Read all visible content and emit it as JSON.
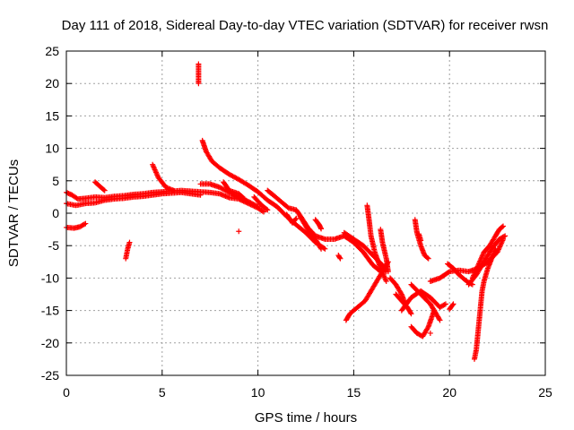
{
  "chart_data": {
    "type": "scatter",
    "title": "Day 111 of 2018, Sidereal Day-to-day VTEC variation (SDTVAR) for receiver rwsn",
    "xlabel": "GPS time / hours",
    "ylabel": "SDTVAR / TECUs",
    "xlim": [
      0,
      25
    ],
    "ylim": [
      -25,
      25
    ],
    "xticks": [
      0,
      5,
      10,
      15,
      20,
      25
    ],
    "yticks": [
      -25,
      -20,
      -15,
      -10,
      -5,
      0,
      5,
      10,
      15,
      20,
      25
    ],
    "grid": true,
    "marker": "+",
    "marker_color": "#ff0000",
    "series": [
      {
        "name": "SDTVAR",
        "segments": [
          [
            [
              0.0,
              3.2
            ],
            [
              0.3,
              2.8
            ],
            [
              0.6,
              2.2
            ],
            [
              1.0,
              2.3
            ],
            [
              1.5,
              2.5
            ],
            [
              2.0,
              2.4
            ],
            [
              2.5,
              2.6
            ],
            [
              3.0,
              2.7
            ],
            [
              3.5,
              2.9
            ],
            [
              4.0,
              3.0
            ],
            [
              4.5,
              3.2
            ],
            [
              5.0,
              3.3
            ],
            [
              5.5,
              3.4
            ],
            [
              6.0,
              3.5
            ],
            [
              6.5,
              3.4
            ],
            [
              7.0,
              3.3
            ],
            [
              7.5,
              3.2
            ],
            [
              8.0,
              3.0
            ],
            [
              8.5,
              2.4
            ],
            [
              9.0,
              2.2
            ],
            [
              9.5,
              1.5
            ],
            [
              10.0,
              0.8
            ],
            [
              10.3,
              0.2
            ]
          ],
          [
            [
              0.0,
              1.5
            ],
            [
              0.5,
              1.2
            ],
            [
              1.0,
              1.5
            ],
            [
              1.5,
              1.6
            ],
            [
              2.0,
              2.0
            ],
            [
              2.5,
              2.2
            ],
            [
              3.0,
              2.3
            ],
            [
              3.5,
              2.5
            ],
            [
              4.0,
              2.6
            ],
            [
              4.5,
              2.8
            ],
            [
              5.0,
              3.0
            ],
            [
              5.5,
              3.1
            ],
            [
              6.0,
              3.2
            ],
            [
              6.5,
              3.0
            ],
            [
              7.0,
              2.8
            ]
          ],
          [
            [
              0.0,
              -2.2
            ],
            [
              0.4,
              -2.3
            ],
            [
              0.7,
              -2.1
            ],
            [
              1.0,
              -1.6
            ]
          ],
          [
            [
              1.5,
              4.8
            ],
            [
              1.8,
              4.0
            ],
            [
              2.0,
              3.5
            ]
          ],
          [
            [
              3.1,
              -7.0
            ],
            [
              3.2,
              -5.5
            ],
            [
              3.3,
              -4.5
            ]
          ],
          [
            [
              4.5,
              7.5
            ],
            [
              4.8,
              5.5
            ],
            [
              5.2,
              4.0
            ],
            [
              5.6,
              3.5
            ]
          ],
          [
            [
              6.9,
              23.0
            ],
            [
              6.9,
              21.5
            ],
            [
              6.9,
              20.0
            ]
          ],
          [
            [
              7.1,
              11.2
            ],
            [
              7.3,
              9.5
            ],
            [
              7.6,
              8.0
            ],
            [
              8.0,
              7.0
            ],
            [
              8.5,
              6.0
            ],
            [
              9.0,
              5.2
            ],
            [
              9.5,
              4.3
            ],
            [
              10.0,
              3.3
            ],
            [
              10.5,
              2.0
            ],
            [
              11.0,
              1.0
            ],
            [
              11.5,
              -0.5
            ],
            [
              12.0,
              -1.8
            ],
            [
              12.5,
              -3.0
            ],
            [
              13.0,
              -4.5
            ],
            [
              13.5,
              -5.5
            ]
          ],
          [
            [
              7.0,
              4.5
            ],
            [
              7.5,
              4.5
            ],
            [
              8.0,
              4.0
            ],
            [
              8.5,
              3.2
            ],
            [
              9.0,
              2.5
            ],
            [
              9.5,
              1.8
            ],
            [
              10.0,
              1.0
            ]
          ],
          [
            [
              10.5,
              3.5
            ],
            [
              10.8,
              2.8
            ],
            [
              11.2,
              1.8
            ],
            [
              11.6,
              0.8
            ],
            [
              12.0,
              0.5
            ],
            [
              12.3,
              -0.8
            ],
            [
              12.6,
              -2.2
            ],
            [
              13.0,
              -3.5
            ],
            [
              13.5,
              -4.0
            ],
            [
              14.0,
              -4.0
            ],
            [
              14.5,
              -3.5
            ],
            [
              15.0,
              -4.5
            ]
          ],
          [
            [
              12.2,
              -0.5
            ],
            [
              12.6,
              -2.5
            ],
            [
              13.0,
              -4.0
            ],
            [
              13.3,
              -5.5
            ]
          ],
          [
            [
              13.0,
              -1.0
            ],
            [
              13.2,
              -1.8
            ],
            [
              13.3,
              -2.4
            ]
          ],
          [
            [
              14.2,
              -6.5
            ],
            [
              14.3,
              -7.0
            ]
          ],
          [
            [
              14.5,
              -3.0
            ],
            [
              15.0,
              -4.0
            ],
            [
              15.5,
              -5.0
            ],
            [
              16.0,
              -6.5
            ],
            [
              16.5,
              -8.0
            ],
            [
              16.7,
              -9.0
            ]
          ],
          [
            [
              14.6,
              -16.5
            ],
            [
              14.8,
              -15.5
            ],
            [
              15.2,
              -14.5
            ],
            [
              15.6,
              -13.5
            ],
            [
              15.9,
              -12.0
            ],
            [
              16.2,
              -10.5
            ],
            [
              16.5,
              -9.0
            ],
            [
              16.8,
              -7.5
            ]
          ],
          [
            [
              15.7,
              1.2
            ],
            [
              15.8,
              -1.0
            ],
            [
              15.9,
              -3.5
            ],
            [
              16.1,
              -6.0
            ],
            [
              16.4,
              -8.5
            ],
            [
              16.7,
              -10.5
            ]
          ],
          [
            [
              16.4,
              -2.5
            ],
            [
              16.5,
              -4.5
            ],
            [
              16.7,
              -7.0
            ],
            [
              16.8,
              -9.0
            ]
          ],
          [
            [
              15.0,
              -4.5
            ],
            [
              15.5,
              -6.0
            ],
            [
              16.0,
              -8.0
            ],
            [
              16.4,
              -9.0
            ]
          ],
          [
            [
              16.9,
              -10.0
            ],
            [
              17.2,
              -11.0
            ],
            [
              17.5,
              -12.5
            ],
            [
              17.7,
              -14.0
            ]
          ],
          [
            [
              17.2,
              -12.5
            ],
            [
              17.5,
              -13.5
            ],
            [
              17.8,
              -14.5
            ],
            [
              18.0,
              -15.5
            ]
          ],
          [
            [
              17.5,
              -15.0
            ],
            [
              18.0,
              -13.0
            ],
            [
              18.5,
              -12.0
            ],
            [
              19.0,
              -13.0
            ],
            [
              19.5,
              -14.5
            ],
            [
              19.8,
              -14.0
            ]
          ],
          [
            [
              18.0,
              -11.0
            ],
            [
              18.5,
              -12.5
            ],
            [
              19.0,
              -14.0
            ],
            [
              19.5,
              -16.5
            ]
          ],
          [
            [
              18.0,
              -17.5
            ],
            [
              18.3,
              -18.5
            ],
            [
              18.6,
              -19.0
            ],
            [
              18.9,
              -17.5
            ],
            [
              19.2,
              -15.0
            ]
          ],
          [
            [
              18.2,
              -1.0
            ],
            [
              18.3,
              -3.0
            ],
            [
              18.5,
              -5.0
            ],
            [
              18.7,
              -6.5
            ],
            [
              18.9,
              -7.0
            ]
          ],
          [
            [
              18.4,
              -3.2
            ],
            [
              18.5,
              -4.2
            ]
          ],
          [
            [
              19.0,
              -18.5
            ]
          ],
          [
            [
              19.0,
              -10.5
            ],
            [
              19.5,
              -10.0
            ],
            [
              20.0,
              -9.0
            ],
            [
              20.5,
              -8.8
            ],
            [
              21.0,
              -9.0
            ],
            [
              21.5,
              -8.5
            ],
            [
              22.0,
              -7.5
            ],
            [
              22.5,
              -6.0
            ],
            [
              22.8,
              -4.0
            ]
          ],
          [
            [
              19.9,
              -7.8
            ],
            [
              20.2,
              -8.5
            ],
            [
              20.5,
              -9.5
            ],
            [
              20.9,
              -10.5
            ],
            [
              21.2,
              -11.0
            ]
          ],
          [
            [
              20.0,
              -14.8
            ],
            [
              20.2,
              -14.0
            ]
          ],
          [
            [
              21.3,
              -22.5
            ],
            [
              21.4,
              -21.0
            ],
            [
              21.5,
              -18.0
            ],
            [
              21.6,
              -15.0
            ],
            [
              21.7,
              -12.0
            ],
            [
              21.8,
              -10.5
            ],
            [
              22.0,
              -8.5
            ],
            [
              22.2,
              -7.0
            ],
            [
              22.4,
              -5.5
            ]
          ],
          [
            [
              21.2,
              -10.0
            ],
            [
              21.5,
              -8.0
            ],
            [
              21.8,
              -6.0
            ],
            [
              22.1,
              -5.0
            ],
            [
              22.4,
              -3.5
            ],
            [
              22.6,
              -2.5
            ],
            [
              22.8,
              -2.0
            ]
          ],
          [
            [
              21.0,
              -11.0
            ],
            [
              21.4,
              -9.5
            ],
            [
              21.8,
              -7.5
            ],
            [
              22.2,
              -5.5
            ],
            [
              22.6,
              -4.0
            ],
            [
              22.9,
              -3.5
            ]
          ],
          [
            [
              9.0,
              -2.8
            ]
          ],
          [
            [
              11.5,
              -0.2
            ],
            [
              11.8,
              -1.5
            ],
            [
              12.0,
              -0.8
            ]
          ],
          [
            [
              8.2,
              4.8
            ],
            [
              8.5,
              3.5
            ],
            [
              9.0,
              3.0
            ],
            [
              9.3,
              2.2
            ]
          ],
          [
            [
              9.8,
              2.5
            ],
            [
              10.2,
              1.2
            ],
            [
              10.5,
              0.5
            ]
          ]
        ]
      }
    ]
  }
}
